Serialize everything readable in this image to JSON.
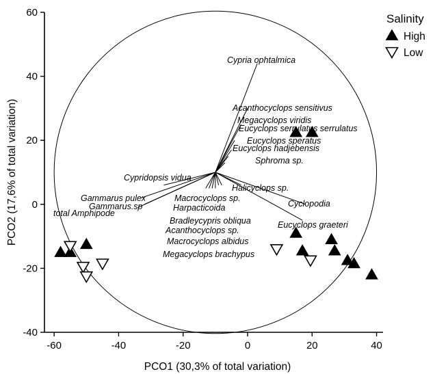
{
  "chart_data": {
    "type": "scatter",
    "xlabel": "PCO1 (30,3% of total variation)",
    "ylabel": "PCO2 (17,6% of total variation)",
    "xlim": [
      -63,
      42
    ],
    "ylim": [
      -40,
      60
    ],
    "xticks": [
      -60,
      -40,
      -20,
      0,
      20,
      40
    ],
    "yticks": [
      -40,
      -20,
      0,
      20,
      40,
      60
    ],
    "grid": false,
    "legend": {
      "title": "Salinity",
      "placement": "top-right",
      "entries": [
        {
          "label": "High",
          "marker": "filled-triangle-up"
        },
        {
          "label": "Low",
          "marker": "open-triangle-down"
        }
      ]
    },
    "correlation_circle": {
      "center": [
        -10,
        10
      ],
      "radius": 50
    },
    "series": [
      {
        "name": "High",
        "points": [
          {
            "x": -58,
            "y": -15
          },
          {
            "x": -55,
            "y": -15
          },
          {
            "x": -50,
            "y": -12.5
          },
          {
            "x": 15,
            "y": 22.5
          },
          {
            "x": 20,
            "y": 22.5
          },
          {
            "x": 15,
            "y": -9
          },
          {
            "x": 17,
            "y": -14.5
          },
          {
            "x": 26,
            "y": -11
          },
          {
            "x": 27,
            "y": -14.5
          },
          {
            "x": 31,
            "y": -17.5
          },
          {
            "x": 33,
            "y": -18.5
          },
          {
            "x": 38.5,
            "y": -22
          }
        ]
      },
      {
        "name": "Low",
        "points": [
          {
            "x": -55,
            "y": -13
          },
          {
            "x": -51,
            "y": -19.5
          },
          {
            "x": -50,
            "y": -22.5
          },
          {
            "x": -45,
            "y": -18.5
          },
          {
            "x": 9,
            "y": -14
          },
          {
            "x": 19.5,
            "y": -17.5
          }
        ]
      }
    ],
    "vectors": [
      {
        "label": "Cypria ophtalmica",
        "x": 3,
        "y": 44
      },
      {
        "label": "Acanthocyclops sensitivus",
        "x": 0,
        "y": 30
      },
      {
        "label": "Megacyclops viridis",
        "x": -2,
        "y": 25
      },
      {
        "label": "Eucyclops serrulatus serrulatus",
        "x": -4,
        "y": 20
      },
      {
        "label": "Eucyclops speratus",
        "x": -5,
        "y": 17
      },
      {
        "label": "Eucyclops hadjebensis",
        "x": -6,
        "y": 15
      },
      {
        "label": "Sphroma sp.",
        "x": -7,
        "y": 13
      },
      {
        "label": "Cypridopsis vidua",
        "x": -26,
        "y": 6
      },
      {
        "label": "Gammarus pulex",
        "x": -33,
        "y": 2
      },
      {
        "label": "Gammarus.sp",
        "x": -32,
        "y": 0
      },
      {
        "label": "total Amphipode",
        "x": -34,
        "y": -1
      },
      {
        "label": "Halicyclops sp.",
        "x": -2,
        "y": 6
      },
      {
        "label": "Cyclopodia",
        "x": 18,
        "y": 0
      },
      {
        "label": "Macrocyclops sp.",
        "x": -8,
        "y": 6
      },
      {
        "label": "Harpacticoida",
        "x": -9,
        "y": 6
      },
      {
        "label": "Bradleycypris obliqua",
        "x": -10,
        "y": 5
      },
      {
        "label": "Acanthocyclops sp.",
        "x": -11,
        "y": 5
      },
      {
        "label": "Macrocyclops albidus",
        "x": -12,
        "y": 5
      },
      {
        "label": "Megacyclops brachypus",
        "x": -13,
        "y": 5
      },
      {
        "label": "Eucyclops graeteri",
        "x": 17,
        "y": -5
      }
    ]
  }
}
